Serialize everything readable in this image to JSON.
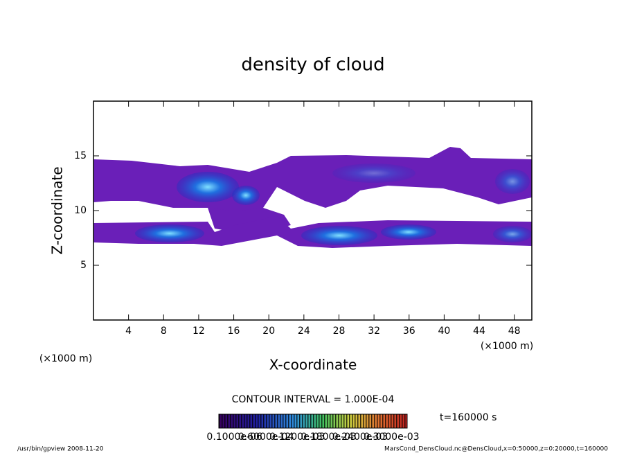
{
  "chart_data": {
    "type": "contour",
    "title": "density of cloud",
    "x_label": "X-coordinate",
    "y_label": "Z-coordinate",
    "x_unit_left": "(×1000 m)",
    "x_unit_right": "(×1000 m)",
    "xlim": [
      0,
      50
    ],
    "ylim": [
      0,
      20
    ],
    "xticks": [
      4,
      8,
      12,
      16,
      20,
      24,
      28,
      32,
      36,
      40,
      44,
      48
    ],
    "yticks": [
      5,
      10,
      15
    ],
    "contour_interval": "CONTOUR INTERVAL = 1.000E-04",
    "colorbar_labels": [
      "0.1000e-06",
      "0.6000e-04",
      "0.1200e-03",
      "0.1800e-03",
      "0.2400e-03",
      "0.3000e-03"
    ],
    "time_label": "t=160000 s",
    "footer_left": "/usr/bin/gpview   2008-11-20",
    "footer_right": "MarsCond_DensCloud.nc@DensCloud,x=0:50000,z=0:20000,t=160000"
  }
}
